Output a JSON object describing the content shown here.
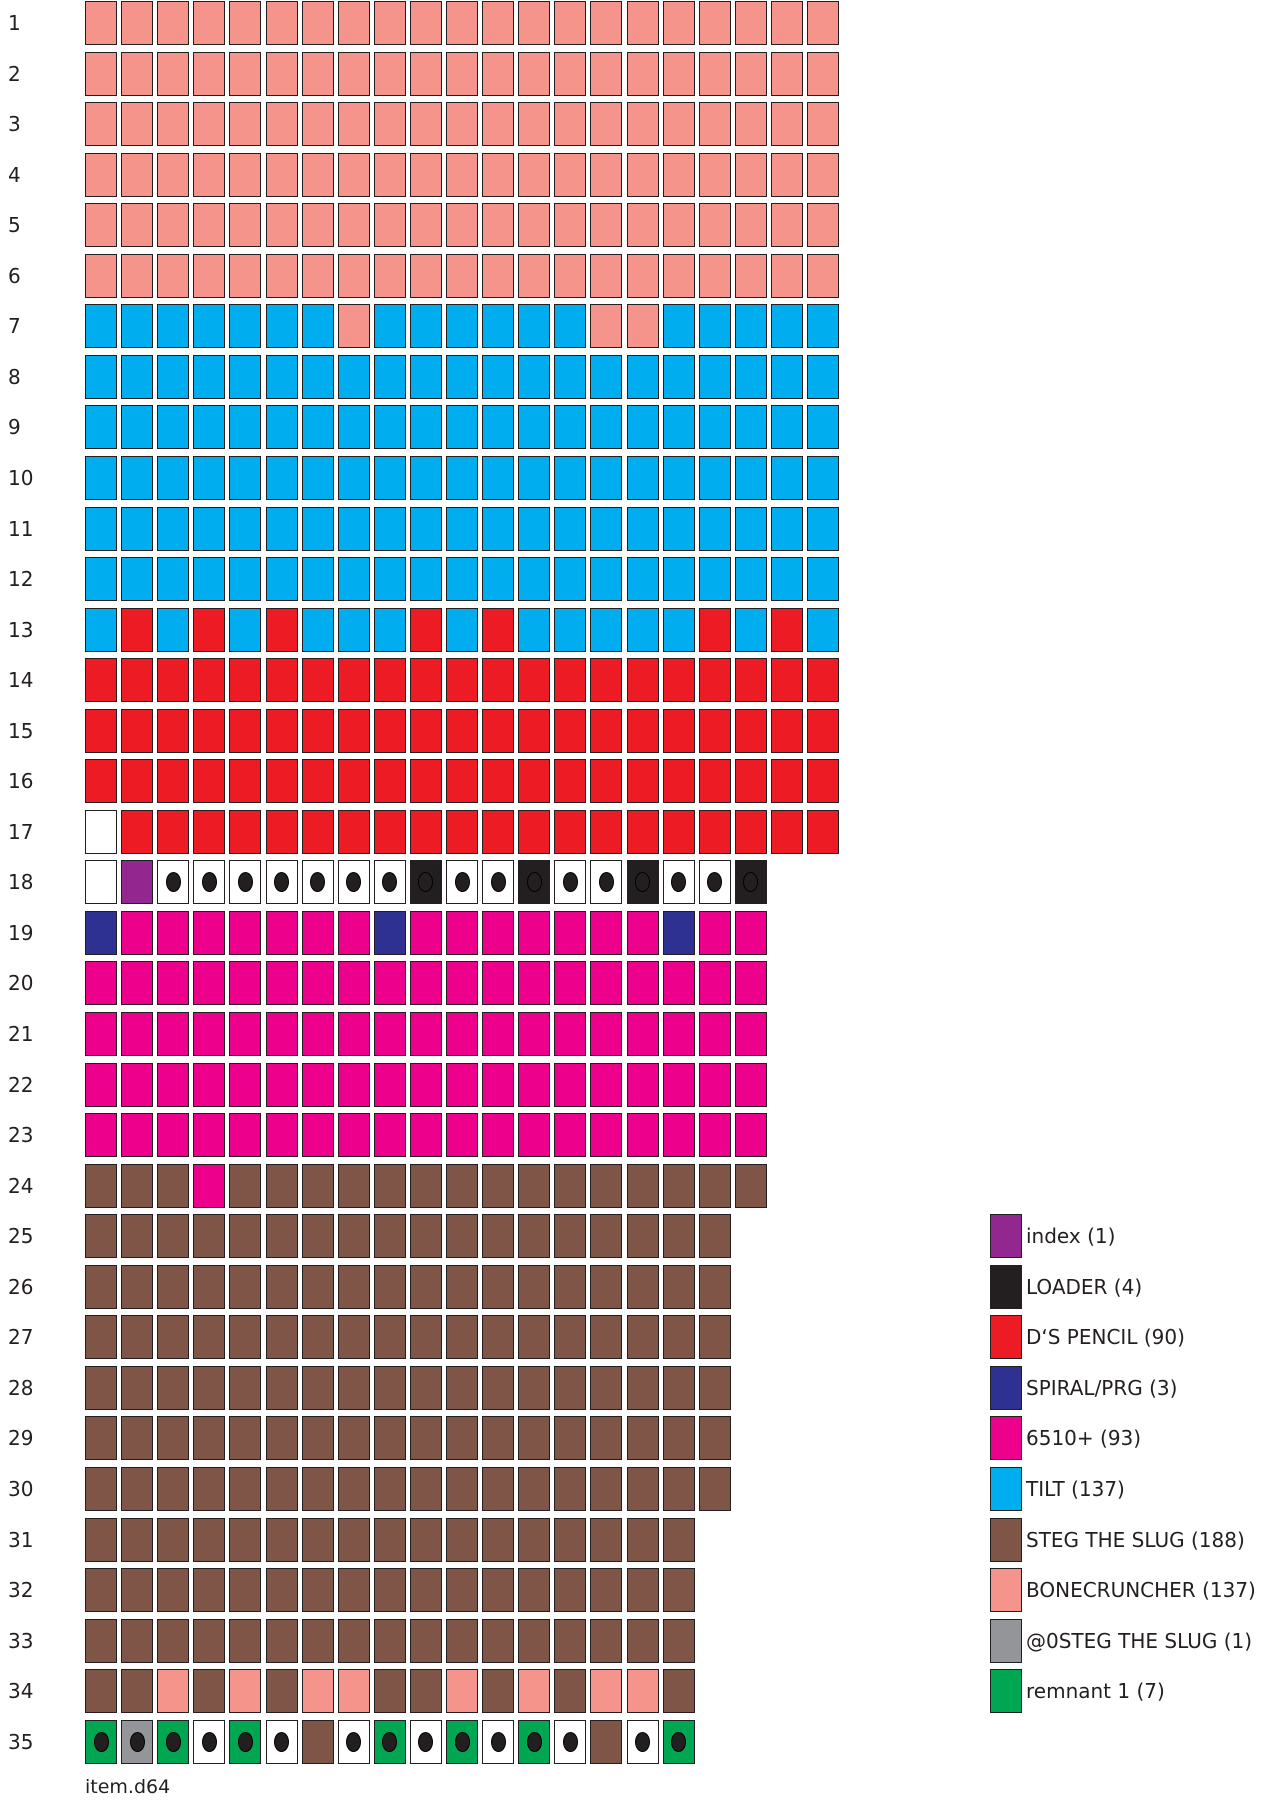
{
  "filename": "item.d64",
  "legend": [
    {
      "key": "p",
      "label": "index (1)",
      "color": "#92278f"
    },
    {
      "key": "L",
      "label": "LOADER (4)",
      "color": "#231f20"
    },
    {
      "key": "r",
      "label": "D‘S PENCIL (90)",
      "color": "#ed1c24"
    },
    {
      "key": "s",
      "label": "SPIRAL/PRG (3)",
      "color": "#2e3192"
    },
    {
      "key": "m",
      "label": "6510+ (93)",
      "color": "#ec008c"
    },
    {
      "key": "t",
      "label": "TILT (137)",
      "color": "#00aeef"
    },
    {
      "key": "g",
      "label": "STEG THE SLUG (188)",
      "color": "#7f5548"
    },
    {
      "key": "b",
      "label": "BONECRUNCHER (137)",
      "color": "#f4948a"
    },
    {
      "key": "G",
      "label": "@0STEG THE SLUG (1)",
      "color": "#939598"
    },
    {
      "key": "n",
      "label": "remnant 1 (7)",
      "color": "#00a651"
    }
  ],
  "free_color": "#ffffff",
  "tracks": [
    {
      "n": "1",
      "cells": "bbbbbbbbbbbbbbbbbbbbb"
    },
    {
      "n": "2",
      "cells": "bbbbbbbbbbbbbbbbbbbbb"
    },
    {
      "n": "3",
      "cells": "bbbbbbbbbbbbbbbbbbbbb"
    },
    {
      "n": "4",
      "cells": "bbbbbbbbbbbbbbbbbbbbb"
    },
    {
      "n": "5",
      "cells": "bbbbbbbbbbbbbbbbbbbbb"
    },
    {
      "n": "6",
      "cells": "bbbbbbbbbbbbbbbbbbbbb"
    },
    {
      "n": "7",
      "cells": "tttttttbttttttbbttttt"
    },
    {
      "n": "8",
      "cells": "ttttttttttttttttttttt"
    },
    {
      "n": "9",
      "cells": "ttttttttttttttttttttt"
    },
    {
      "n": "10",
      "cells": "ttttttttttttttttttttt"
    },
    {
      "n": "11",
      "cells": "ttttttttttttttttttttt"
    },
    {
      "n": "12",
      "cells": "ttttttttttttttttttttt"
    },
    {
      "n": "13",
      "cells": "trtrtrtttrtrtttttrtrt"
    },
    {
      "n": "14",
      "cells": "rrrrrrrrrrrrrrrrrrrrr"
    },
    {
      "n": "15",
      "cells": "rrrrrrrrrrrrrrrrrrrrr"
    },
    {
      "n": "16",
      "cells": "rrrrrrrrrrrrrrrrrrrrr"
    },
    {
      "n": "17",
      "cells": "wrrrrrrrrrrrrrrrrrrrr"
    },
    {
      "n": "18",
      "cells": "wp.......L..L..L..L",
      "dots": "0011111111111111111"
    },
    {
      "n": "19",
      "cells": "smmmmmmmsmmmmmmmsmm"
    },
    {
      "n": "20",
      "cells": "mmmmmmmmmmmmmmmmmmm"
    },
    {
      "n": "21",
      "cells": "mmmmmmmmmmmmmmmmmmm"
    },
    {
      "n": "22",
      "cells": "mmmmmmmmmmmmmmmmmmm"
    },
    {
      "n": "23",
      "cells": "mmmmmmmmmmmmmmmmmmm"
    },
    {
      "n": "24",
      "cells": "gggmggggggggggggggg"
    },
    {
      "n": "25",
      "cells": "gggggggggggggggggg"
    },
    {
      "n": "26",
      "cells": "gggggggggggggggggg"
    },
    {
      "n": "27",
      "cells": "gggggggggggggggggg"
    },
    {
      "n": "28",
      "cells": "gggggggggggggggggg"
    },
    {
      "n": "29",
      "cells": "gggggggggggggggggg"
    },
    {
      "n": "30",
      "cells": "gggggggggggggggggg"
    },
    {
      "n": "31",
      "cells": "ggggggggggggggggg"
    },
    {
      "n": "32",
      "cells": "ggggggggggggggggg"
    },
    {
      "n": "33",
      "cells": "ggggggggggggggggg"
    },
    {
      "n": "34",
      "cells": "ggbgbgbbggbgbgbbg"
    },
    {
      "n": "35",
      "cells": "nGn.n.g.n.n.n.g.n",
      "dots": "11111101111111011"
    }
  ]
}
